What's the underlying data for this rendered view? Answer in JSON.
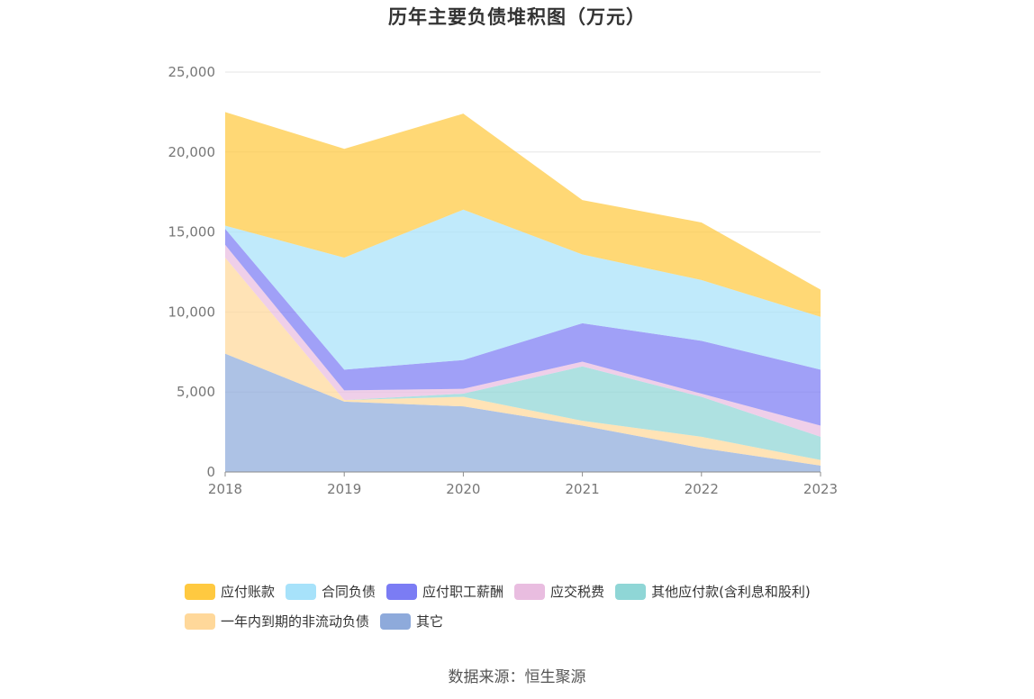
{
  "chart_data": {
    "type": "area",
    "stacked": true,
    "title": "历年主要负债堆积图（万元）",
    "categories": [
      "2018",
      "2019",
      "2020",
      "2021",
      "2022",
      "2023"
    ],
    "ylim": [
      0,
      25000
    ],
    "yticks": [
      0,
      5000,
      10000,
      15000,
      20000,
      25000
    ],
    "ytick_labels": [
      "0",
      "5,000",
      "10,000",
      "15,000",
      "20,000",
      "25,000"
    ],
    "grid": true,
    "series": [
      {
        "name": "其它",
        "color": "#8eaadb",
        "values": [
          7400,
          4400,
          4100,
          2900,
          1500,
          400
        ]
      },
      {
        "name": "一年内到期的非流动负债",
        "color": "#ffd89a",
        "values": [
          6000,
          100,
          600,
          300,
          700,
          350
        ]
      },
      {
        "name": "其他应付款(含利息和股利)",
        "color": "#8fd6d6",
        "values": [
          0,
          0,
          200,
          3400,
          2500,
          1450
        ]
      },
      {
        "name": "应交税费",
        "color": "#e9bde0",
        "values": [
          800,
          600,
          300,
          300,
          200,
          700
        ]
      },
      {
        "name": "应付职工薪酬",
        "color": "#7b7cf4",
        "values": [
          1000,
          1300,
          1800,
          2400,
          3300,
          3500
        ]
      },
      {
        "name": "合同负债",
        "color": "#a7e2fa",
        "values": [
          200,
          7000,
          9400,
          4300,
          3800,
          3300
        ]
      },
      {
        "name": "应付账款",
        "color": "#ffc940",
        "values": [
          7100,
          6800,
          6000,
          3400,
          3600,
          1700
        ]
      }
    ]
  },
  "legend": {
    "row1": [
      {
        "label": "应付账款",
        "color": "#ffc940"
      },
      {
        "label": "合同负债",
        "color": "#a7e2fa"
      },
      {
        "label": "应付职工薪酬",
        "color": "#7b7cf4"
      },
      {
        "label": "应交税费",
        "color": "#e9bde0"
      },
      {
        "label": "其他应付款(含利息和股利)",
        "color": "#8fd6d6"
      }
    ],
    "row2": [
      {
        "label": "一年内到期的非流动负债",
        "color": "#ffd89a"
      },
      {
        "label": "其它",
        "color": "#8eaadb"
      }
    ]
  },
  "source": "数据来源：恒生聚源"
}
